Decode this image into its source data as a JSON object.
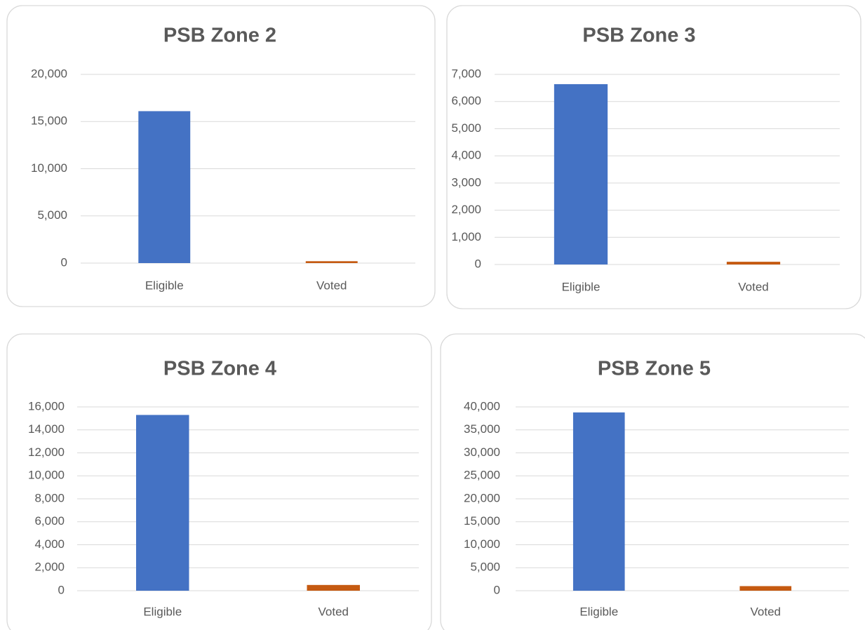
{
  "chart_data": [
    {
      "type": "bar",
      "title": "PSB Zone 2",
      "categories": [
        "Eligible",
        "Voted"
      ],
      "values": [
        16100,
        200
      ],
      "colors": [
        "#4472c4",
        "#c55a11"
      ],
      "ylim": [
        0,
        20000
      ],
      "yticks": [
        0,
        {
          "value": 5000,
          "label": "5,000"
        },
        {
          "value": 10000,
          "label": "10,000"
        },
        {
          "value": 15000,
          "label": "15,000"
        },
        {
          "value": 20000,
          "label": "20,000"
        }
      ],
      "grid": true
    },
    {
      "type": "bar",
      "title": "PSB Zone 3",
      "categories": [
        "Eligible",
        "Voted"
      ],
      "values": [
        6640,
        100
      ],
      "colors": [
        "#4472c4",
        "#c55a11"
      ],
      "ylim": [
        0,
        7000
      ],
      "yticks": [
        0,
        {
          "value": 1000,
          "label": "1,000"
        },
        {
          "value": 2000,
          "label": "2,000"
        },
        {
          "value": 3000,
          "label": "3,000"
        },
        {
          "value": 4000,
          "label": "4,000"
        },
        {
          "value": 5000,
          "label": "5,000"
        },
        {
          "value": 6000,
          "label": "6,000"
        },
        {
          "value": 7000,
          "label": "7,000"
        }
      ],
      "grid": true
    },
    {
      "type": "bar",
      "title": "PSB Zone 4",
      "categories": [
        "Eligible",
        "Voted"
      ],
      "values": [
        15300,
        500
      ],
      "colors": [
        "#4472c4",
        "#c55a11"
      ],
      "ylim": [
        0,
        16000
      ],
      "yticks": [
        0,
        {
          "value": 2000,
          "label": "2,000"
        },
        {
          "value": 4000,
          "label": "4,000"
        },
        {
          "value": 6000,
          "label": "6,000"
        },
        {
          "value": 8000,
          "label": "8,000"
        },
        {
          "value": 10000,
          "label": "10,000"
        },
        {
          "value": 12000,
          "label": "12,000"
        },
        {
          "value": 14000,
          "label": "14,000"
        },
        {
          "value": 16000,
          "label": "16,000"
        }
      ],
      "grid": true
    },
    {
      "type": "bar",
      "title": "PSB Zone 5",
      "categories": [
        "Eligible",
        "Voted"
      ],
      "values": [
        38800,
        1000
      ],
      "colors": [
        "#4472c4",
        "#c55a11"
      ],
      "ylim": [
        0,
        40000
      ],
      "yticks": [
        0,
        {
          "value": 5000,
          "label": "5,000"
        },
        {
          "value": 10000,
          "label": "10,000"
        },
        {
          "value": 15000,
          "label": "15,000"
        },
        {
          "value": 20000,
          "label": "20,000"
        },
        {
          "value": 25000,
          "label": "25,000"
        },
        {
          "value": 30000,
          "label": "30,000"
        },
        {
          "value": 35000,
          "label": "35,000"
        },
        {
          "value": 40000,
          "label": "40,000"
        }
      ],
      "grid": true
    }
  ]
}
